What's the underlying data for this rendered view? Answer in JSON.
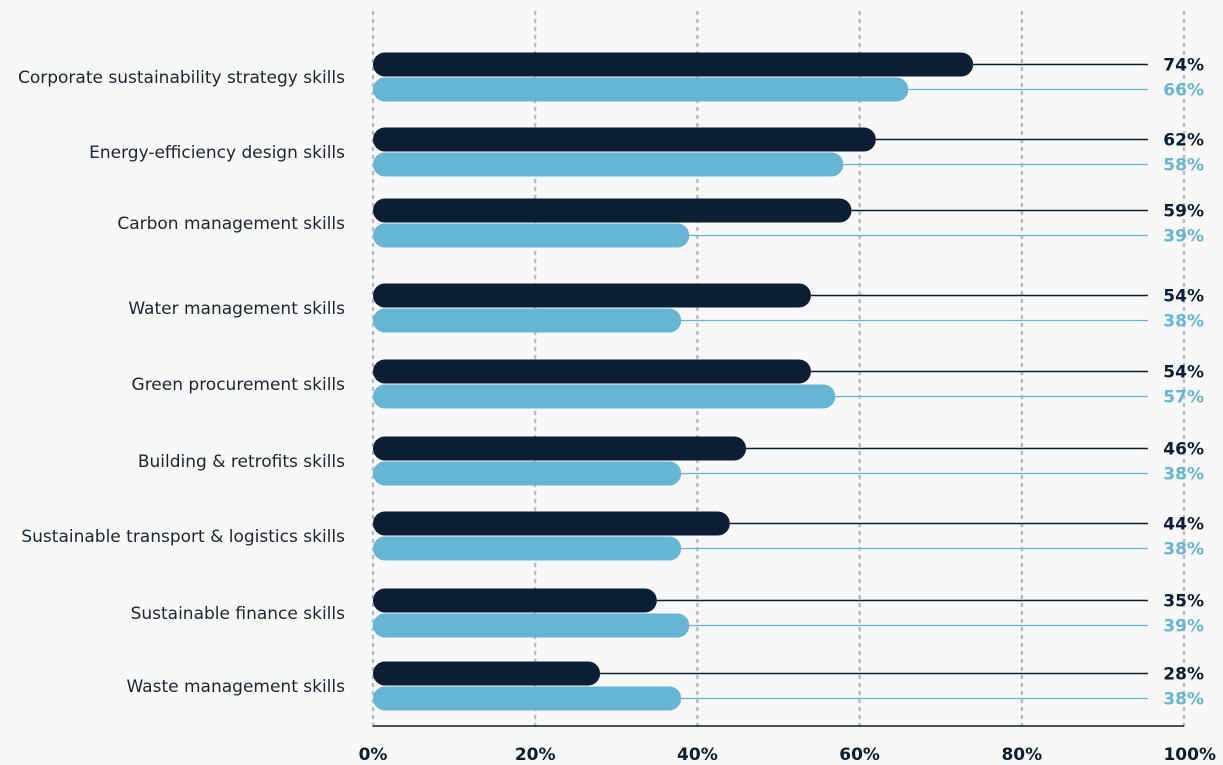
{
  "chart_data": {
    "type": "bar",
    "orientation": "horizontal",
    "categories": [
      "Corporate sustainability strategy skills",
      "Energy-efficiency design skills",
      "Carbon management skills",
      "Water management skills",
      "Green procurement skills",
      "Building & retrofits skills",
      "Sustainable transport & logistics skills",
      "Sustainable finance skills",
      "Waste management skills"
    ],
    "series": [
      {
        "values": [
          74,
          62,
          59,
          54,
          54,
          46,
          44,
          35,
          28
        ],
        "color": "#0c1e33",
        "labels": [
          "74%",
          "62%",
          "59%",
          "54%",
          "54%",
          "46%",
          "44%",
          "35%",
          "28%"
        ]
      },
      {
        "values": [
          66,
          58,
          39,
          38,
          57,
          38,
          38,
          39,
          38
        ],
        "color": "#66b6d3",
        "labels": [
          "66%",
          "58%",
          "39%",
          "38%",
          "57%",
          "38%",
          "38%",
          "39%",
          "38%"
        ]
      }
    ],
    "xlim": [
      0,
      100
    ],
    "xticks": [
      "0%",
      "20%",
      "40%",
      "60%",
      "80%",
      "100%"
    ],
    "grid": "vertical-dotted",
    "legend": "none"
  }
}
